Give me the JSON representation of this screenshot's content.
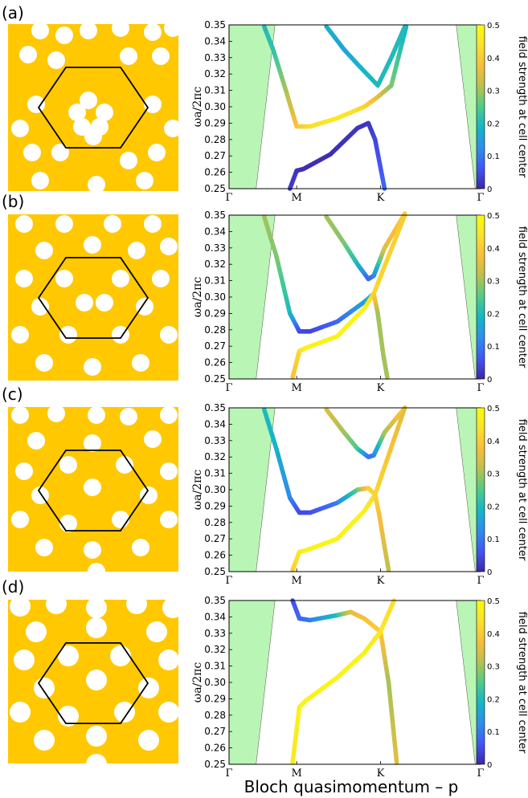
{
  "figure": {
    "xlabel": "Bloch quasimomentum – p",
    "colors": {
      "lattice": "#FFC800",
      "hole": "#ffffff",
      "cell_outline": "#000000",
      "bandgap_fill": "#b9f5b4",
      "colormap": [
        "#3e26a8",
        "#4356f5",
        "#2f8eeb",
        "#14b6c7",
        "#4fcb8c",
        "#b8c14f",
        "#f9bd3b",
        "#fbe12a",
        "#f9fb0e"
      ]
    }
  },
  "panels": [
    {
      "label": "(a)",
      "chart_data": {
        "type": "line",
        "ylabel": "ωa/2πc",
        "ylim": [
          0.25,
          0.35
        ],
        "yticks": [
          "0.25",
          "0.26",
          "0.27",
          "0.28",
          "0.29",
          "0.30",
          "0.31",
          "0.32",
          "0.33",
          "0.34",
          "0.35"
        ],
        "xticks": [
          "Γ",
          "M",
          "K",
          "Γ"
        ],
        "colorbar": {
          "label": "field strength at cell center",
          "range": [
            0,
            0.5
          ],
          "ticks": [
            "0",
            "0.1",
            "0.2",
            "0.3",
            "0.4",
            "0.5"
          ]
        },
        "gap_regions": [
          {
            "x": [
              0.0,
              0.0,
              0.34,
              0.2
            ],
            "y": [
              0.25,
              0.35,
              0.35,
              0.25
            ]
          },
          {
            "x": [
              1.68,
              1.82,
              1.86,
              1.86
            ],
            "y": [
              0.35,
              0.25,
              0.25,
              0.35
            ]
          }
        ],
        "bands": [
          {
            "points": [
              [
                0.26,
                0.349,
                0.2
              ],
              [
                0.33,
                0.334,
                0.22
              ],
              [
                0.42,
                0.31,
                0.3
              ],
              [
                0.5,
                0.288,
                0.38
              ],
              [
                0.6,
                0.288,
                0.43
              ],
              [
                0.8,
                0.293,
                0.46
              ],
              [
                1.0,
                0.3,
                0.42
              ],
              [
                1.1,
                0.306,
                0.36
              ],
              [
                1.2,
                0.313,
                0.28
              ],
              [
                1.31,
                0.349,
                0.18
              ]
            ]
          },
          {
            "points": [
              [
                0.72,
                0.349,
                0.18
              ],
              [
                0.85,
                0.335,
                0.16
              ],
              [
                0.95,
                0.326,
                0.18
              ],
              [
                1.1,
                0.313,
                0.2
              ],
              [
                1.2,
                0.33,
                0.2
              ],
              [
                1.3,
                0.349,
                0.2
              ]
            ]
          },
          {
            "points": [
              [
                0.45,
                0.25,
                0.03
              ],
              [
                0.5,
                0.261,
                0.02
              ],
              [
                0.55,
                0.262,
                0.01
              ],
              [
                0.75,
                0.271,
                0.01
              ],
              [
                0.95,
                0.287,
                0.02
              ],
              [
                1.03,
                0.29,
                0.02
              ],
              [
                1.08,
                0.28,
                0.04
              ],
              [
                1.15,
                0.25,
                0.08
              ]
            ]
          }
        ]
      }
    },
    {
      "label": "(b)",
      "chart_data": {
        "type": "line",
        "ylabel": "ωa/2πc",
        "ylim": [
          0.25,
          0.35
        ],
        "yticks": [
          "0.25",
          "0.26",
          "0.27",
          "0.28",
          "0.29",
          "0.30",
          "0.31",
          "0.32",
          "0.33",
          "0.34",
          "0.35"
        ],
        "xticks": [
          "Γ",
          "M",
          "K",
          "Γ"
        ],
        "colorbar": {
          "label": "field strength at cell center",
          "range": [
            0,
            0.5
          ],
          "ticks": [
            "0",
            "0.1",
            "0.2",
            "0.3",
            "0.4",
            "0.5"
          ]
        },
        "gap_regions": [
          {
            "x": [
              0.0,
              0.0,
              0.34,
              0.2
            ],
            "y": [
              0.25,
              0.35,
              0.35,
              0.25
            ]
          },
          {
            "x": [
              1.68,
              1.82,
              1.86,
              1.86
            ],
            "y": [
              0.35,
              0.25,
              0.25,
              0.35
            ]
          }
        ],
        "bands": [
          {
            "points": [
              [
                0.26,
                0.349,
                0.3
              ],
              [
                0.35,
                0.325,
                0.28
              ],
              [
                0.45,
                0.29,
                0.2
              ],
              [
                0.52,
                0.279,
                0.05
              ],
              [
                0.6,
                0.279,
                0.04
              ],
              [
                0.8,
                0.285,
                0.08
              ],
              [
                1.0,
                0.297,
                0.15
              ],
              [
                1.07,
                0.302,
                0.22
              ]
            ]
          },
          {
            "points": [
              [
                0.72,
                0.349,
                0.3
              ],
              [
                0.85,
                0.333,
                0.28
              ],
              [
                0.95,
                0.32,
                0.2
              ],
              [
                1.03,
                0.311,
                0.08
              ],
              [
                1.07,
                0.313,
                0.1
              ],
              [
                1.15,
                0.33,
                0.35
              ],
              [
                1.3,
                0.351,
                0.4
              ]
            ]
          },
          {
            "points": [
              [
                0.47,
                0.251,
                0.38
              ],
              [
                0.52,
                0.267,
                0.42
              ],
              [
                0.57,
                0.269,
                0.48
              ],
              [
                0.8,
                0.276,
                0.48
              ],
              [
                1.0,
                0.293,
                0.48
              ],
              [
                1.07,
                0.302,
                0.42
              ],
              [
                1.3,
                0.35,
                0.4
              ]
            ]
          },
          {
            "points": [
              [
                1.07,
                0.302,
                0.42
              ],
              [
                1.1,
                0.29,
                0.3
              ],
              [
                1.14,
                0.265,
                0.3
              ],
              [
                1.17,
                0.251,
                0.3
              ]
            ]
          }
        ]
      }
    },
    {
      "label": "(c)",
      "chart_data": {
        "type": "line",
        "ylabel": "ωa/2πc",
        "ylim": [
          0.25,
          0.35
        ],
        "yticks": [
          "0.25",
          "0.26",
          "0.27",
          "0.28",
          "0.29",
          "0.30",
          "0.31",
          "0.32",
          "0.33",
          "0.34",
          "0.35"
        ],
        "xticks": [
          "Γ",
          "M",
          "K",
          "Γ"
        ],
        "colorbar": {
          "label": "field strength at cell center",
          "range": [
            0,
            0.5
          ],
          "ticks": [
            "0",
            "0.1",
            "0.2",
            "0.3",
            "0.4",
            "0.5"
          ]
        },
        "gap_regions": [
          {
            "x": [
              0.0,
              0.0,
              0.34,
              0.2
            ],
            "y": [
              0.25,
              0.35,
              0.35,
              0.25
            ]
          },
          {
            "x": [
              1.68,
              1.82,
              1.86,
              1.86
            ],
            "y": [
              0.35,
              0.25,
              0.25,
              0.35
            ]
          }
        ],
        "bands": [
          {
            "points": [
              [
                0.26,
                0.349,
                0.2
              ],
              [
                0.35,
                0.325,
                0.18
              ],
              [
                0.45,
                0.295,
                0.12
              ],
              [
                0.52,
                0.286,
                0.05
              ],
              [
                0.6,
                0.286,
                0.05
              ],
              [
                0.8,
                0.292,
                0.1
              ],
              [
                0.95,
                0.3,
                0.25
              ],
              [
                1.03,
                0.301,
                0.4
              ],
              [
                1.08,
                0.297,
                0.42
              ]
            ]
          },
          {
            "points": [
              [
                0.72,
                0.349,
                0.35
              ],
              [
                0.85,
                0.335,
                0.3
              ],
              [
                0.95,
                0.325,
                0.25
              ],
              [
                1.03,
                0.32,
                0.1
              ],
              [
                1.07,
                0.321,
                0.1
              ],
              [
                1.15,
                0.335,
                0.3
              ],
              [
                1.3,
                0.35,
                0.4
              ]
            ]
          },
          {
            "points": [
              [
                0.47,
                0.251,
                0.4
              ],
              [
                0.52,
                0.262,
                0.45
              ],
              [
                0.57,
                0.263,
                0.48
              ],
              [
                0.8,
                0.27,
                0.48
              ],
              [
                1.0,
                0.287,
                0.48
              ],
              [
                1.08,
                0.297,
                0.42
              ],
              [
                1.3,
                0.35,
                0.35
              ]
            ]
          },
          {
            "points": [
              [
                1.08,
                0.297,
                0.42
              ],
              [
                1.11,
                0.285,
                0.38
              ],
              [
                1.15,
                0.265,
                0.35
              ],
              [
                1.18,
                0.251,
                0.32
              ]
            ]
          }
        ]
      }
    },
    {
      "label": "(d)",
      "chart_data": {
        "type": "line",
        "ylabel": "ωa/2πc",
        "ylim": [
          0.25,
          0.35
        ],
        "yticks": [
          "0.25",
          "0.26",
          "0.27",
          "0.28",
          "0.29",
          "0.30",
          "0.31",
          "0.32",
          "0.33",
          "0.34",
          "0.35"
        ],
        "xticks": [
          "Γ",
          "M",
          "K",
          "Γ"
        ],
        "colorbar": {
          "label": "field strength at cell center",
          "range": [
            0,
            0.5
          ],
          "ticks": [
            "0",
            "0.1",
            "0.2",
            "0.3",
            "0.4",
            "0.5"
          ]
        },
        "gap_regions": [
          {
            "x": [
              0.0,
              0.0,
              0.34,
              0.2
            ],
            "y": [
              0.25,
              0.35,
              0.35,
              0.25
            ]
          },
          {
            "x": [
              1.68,
              1.82,
              1.86,
              1.86
            ],
            "y": [
              0.35,
              0.25,
              0.25,
              0.35
            ]
          }
        ],
        "bands": [
          {
            "points": [
              [
                0.47,
                0.35,
                0.05
              ],
              [
                0.52,
                0.339,
                0.08
              ],
              [
                0.6,
                0.338,
                0.1
              ],
              [
                0.8,
                0.341,
                0.2
              ],
              [
                0.9,
                0.343,
                0.35
              ],
              [
                1.0,
                0.339,
                0.38
              ],
              [
                1.12,
                0.331,
                0.4
              ],
              [
                1.18,
                0.3,
                0.3
              ],
              [
                1.24,
                0.251,
                0.35
              ]
            ]
          },
          {
            "points": [
              [
                0.47,
                0.251,
                0.45
              ],
              [
                0.52,
                0.285,
                0.48
              ],
              [
                0.57,
                0.289,
                0.48
              ],
              [
                0.8,
                0.303,
                0.48
              ],
              [
                1.0,
                0.318,
                0.48
              ],
              [
                1.12,
                0.331,
                0.45
              ],
              [
                1.22,
                0.35,
                0.43
              ]
            ]
          }
        ]
      }
    }
  ]
}
